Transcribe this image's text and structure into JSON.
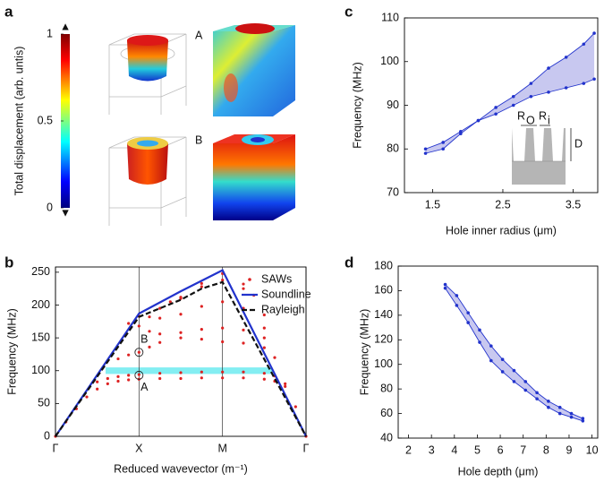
{
  "chart_data": [
    {
      "type": "colorbar",
      "panel_label": "a",
      "ylabel": "Total displacement (arb. untis)",
      "ylim": [
        0,
        1
      ],
      "yticks": [
        0,
        0.5,
        1
      ],
      "labels": [
        "A",
        "B"
      ]
    },
    {
      "type": "line",
      "panel_label": "b",
      "ylabel": "Frequency (MHz)",
      "xlabel": "Reduced wavevector (m⁻¹)",
      "xlim": [
        0,
        3
      ],
      "xticks": [
        {
          "value": 0,
          "label": "Γ"
        },
        {
          "value": 1,
          "label": "X"
        },
        {
          "value": 2,
          "label": "M"
        },
        {
          "value": 3,
          "label": "Γ"
        }
      ],
      "ylim": [
        0,
        258
      ],
      "yticks": [
        0,
        50,
        100,
        150,
        200,
        250
      ],
      "xgrid": true,
      "legend": "upper right",
      "highlight": {
        "x": [
          0.6,
          2.6
        ],
        "y": [
          95,
          105
        ],
        "color": "#84eef2"
      },
      "annotations": [
        {
          "text": "A",
          "x": 1,
          "y": 93
        },
        {
          "text": "B",
          "x": 1,
          "y": 128
        }
      ],
      "series": [
        {
          "name": "SAWs",
          "color": "#dd2222",
          "style": "dots",
          "branches": [
            {
              "x": [
                0,
                0.125,
                0.25,
                0.375,
                0.5,
                0.625,
                0.75,
                0.875,
                1,
                1.25,
                1.5,
                1.75,
                2,
                2.25,
                2.5,
                2.625,
                2.75,
                2.875,
                3
              ],
              "values": [
                0,
                22,
                42,
                60,
                72,
                80,
                84,
                86,
                87,
                88,
                88,
                89,
                89,
                89,
                87,
                84,
                76,
                45,
                0
              ]
            },
            {
              "x": [
                0.5,
                0.625,
                0.75,
                0.875,
                1,
                1.25,
                1.5,
                1.75,
                2,
                2.25,
                2.5,
                2.625,
                2.75
              ],
              "values": [
                83,
                88,
                91,
                93,
                94,
                96,
                97,
                98,
                98,
                98,
                96,
                92,
                80
              ]
            },
            {
              "x": [
                0.75,
                0.875,
                1,
                1.125,
                1.25,
                1.5,
                1.75,
                2,
                2.25,
                2.5,
                2.625
              ],
              "values": [
                118,
                124,
                128,
                136,
                143,
                150,
                148,
                144,
                142,
                135,
                120
              ]
            },
            {
              "x": [
                0.875,
                1,
                1.125,
                1.25,
                1.5,
                1.75,
                2,
                2.25,
                2.5
              ],
              "values": [
                172,
                168,
                160,
                156,
                158,
                163,
                165,
                162,
                150
              ]
            },
            {
              "x": [
                1,
                1.125,
                1.25,
                1.5,
                1.75,
                2,
                2.25,
                2.5
              ],
              "values": [
                183,
                182,
                180,
                186,
                198,
                205,
                195,
                165
              ]
            },
            {
              "x": [
                1.375,
                1.5,
                1.75,
                2,
                2.25,
                2.5
              ],
              "values": [
                205,
                212,
                228,
                238,
                225,
                185
              ]
            },
            {
              "x": [
                1.25,
                1.5,
                1.75,
                2,
                2.25,
                2.375
              ],
              "values": [
                195,
                210,
                233,
                248,
                232,
                215
              ]
            }
          ]
        },
        {
          "name": "Soundline",
          "color": "#2233cc",
          "style": "solid",
          "x": [
            0,
            1,
            1.5,
            2,
            3
          ],
          "values": [
            0,
            187,
            221,
            253,
            0
          ]
        },
        {
          "name": "Rayleigh",
          "color": "#111111",
          "style": "dashed",
          "x": [
            0,
            1,
            1.5,
            1.75,
            2,
            3
          ],
          "values": [
            0,
            182,
            208,
            225,
            235,
            0
          ]
        }
      ]
    },
    {
      "type": "line",
      "panel_label": "c",
      "ylabel": "Frequency (MHz)",
      "xlabel": "Hole inner radius (μm)",
      "xlim": [
        1.1,
        3.85
      ],
      "xticks": [
        1.5,
        2.5,
        3.5
      ],
      "ylim": [
        70,
        110
      ],
      "yticks": [
        70,
        80,
        90,
        100,
        110
      ],
      "fill_between": true,
      "fill_color": "#c8c8f0",
      "inset": {
        "outer": [
          "R",
          "O"
        ],
        "inner": [
          "R",
          "i"
        ],
        "depth": "D"
      },
      "series": [
        {
          "color": "#2233cc",
          "style": "solid",
          "markers": true,
          "x": [
            1.4,
            1.65,
            1.9,
            2.15,
            2.4,
            2.65,
            2.9,
            3.15,
            3.4,
            3.65,
            3.8
          ],
          "values": [
            80,
            81.5,
            84,
            86.5,
            89.5,
            92,
            95,
            98.5,
            101,
            104,
            106.5
          ]
        },
        {
          "color": "#2233cc",
          "style": "solid",
          "markers": true,
          "x": [
            1.4,
            1.65,
            1.9,
            2.15,
            2.4,
            2.65,
            2.9,
            3.15,
            3.4,
            3.65,
            3.8
          ],
          "values": [
            79,
            80,
            83.5,
            86.5,
            88,
            90,
            92,
            93,
            94,
            95,
            96
          ]
        }
      ]
    },
    {
      "type": "line",
      "panel_label": "d",
      "ylabel": "Frequency (MHz)",
      "xlabel": "Hole depth (μm)",
      "xlim": [
        1.55,
        10.25
      ],
      "xticks": [
        2,
        3,
        4,
        5,
        6,
        7,
        8,
        9,
        10
      ],
      "ylim": [
        40,
        180
      ],
      "yticks": [
        40,
        60,
        80,
        100,
        120,
        140,
        160,
        180
      ],
      "fill_between": true,
      "fill_color": "#c8c8f0",
      "series": [
        {
          "color": "#2233cc",
          "style": "solid",
          "markers": true,
          "x": [
            3.6,
            4.1,
            4.6,
            5.1,
            5.6,
            6.1,
            6.6,
            7.1,
            7.6,
            8.1,
            8.6,
            9.1,
            9.6
          ],
          "values": [
            165,
            156,
            142,
            128,
            115,
            104,
            95,
            86,
            77,
            70,
            65,
            60,
            56
          ]
        },
        {
          "color": "#2233cc",
          "style": "solid",
          "markers": true,
          "x": [
            3.6,
            4.1,
            4.6,
            5.1,
            5.6,
            6.1,
            6.6,
            7.1,
            7.6,
            8.1,
            8.6,
            9.1,
            9.6
          ],
          "values": [
            162,
            148,
            134,
            118,
            103,
            94,
            86,
            79,
            72,
            65,
            60,
            57,
            54
          ]
        }
      ]
    }
  ]
}
